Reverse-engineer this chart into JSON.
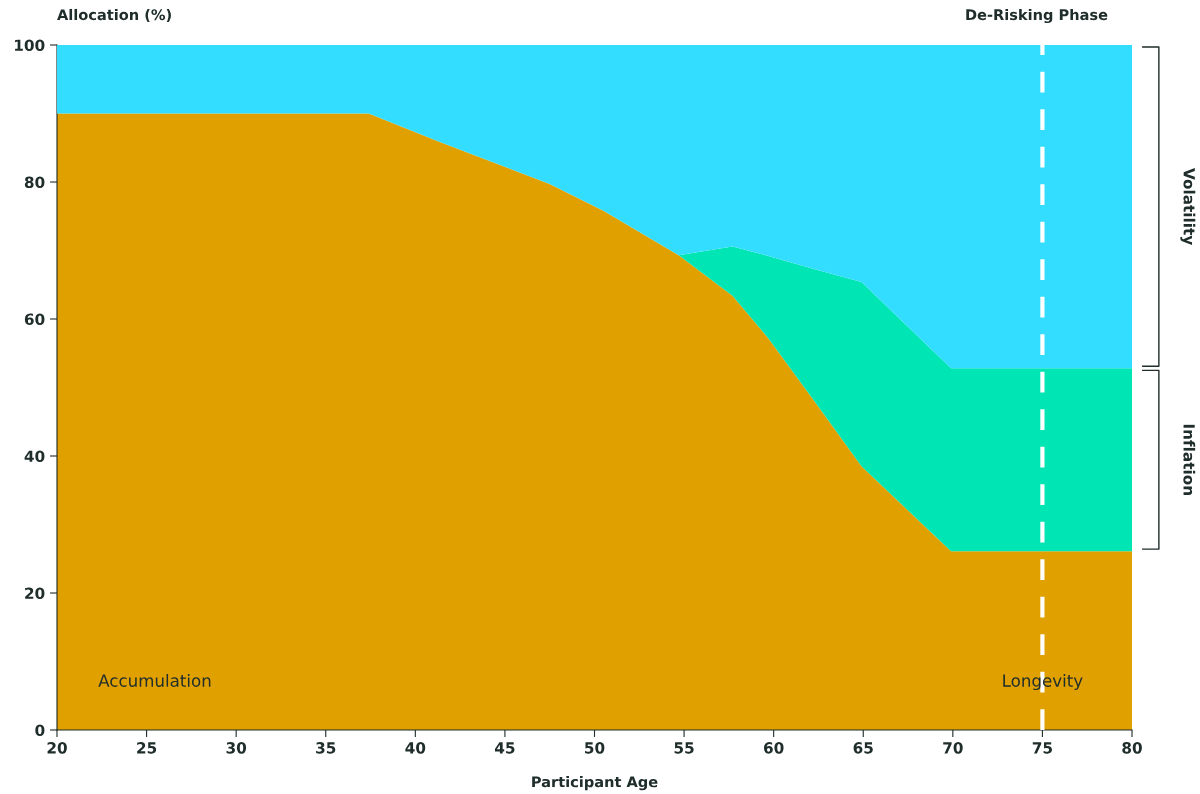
{
  "chart_data": {
    "type": "area",
    "stacked": true,
    "xlabel": "Participant Age",
    "ylabel": "Allocation (%)",
    "x": [
      20,
      37.4,
      41.3,
      47.5,
      50.5,
      54.7,
      57.7,
      59.7,
      62.5,
      64.9,
      69.9,
      80
    ],
    "series": [
      {
        "color": "#e0a000",
        "values": [
          90,
          90,
          85.9,
          79.7,
          75.8,
          69.3,
          63.4,
          57.2,
          47.2,
          38.5,
          26.1,
          26.1
        ]
      },
      {
        "name": "Inflation",
        "color": "#00e5b4",
        "values": [
          0,
          0,
          0,
          0,
          0,
          0,
          7.2,
          12.0,
          19.9,
          26.9,
          26.7,
          26.7
        ]
      },
      {
        "name": "Volatility",
        "color": "#33ddff",
        "values": [
          10,
          10,
          14.1,
          20.3,
          24.2,
          30.7,
          29.4,
          30.8,
          32.9,
          34.6,
          47.2,
          47.2
        ]
      }
    ],
    "xlim": [
      20,
      80
    ],
    "xticks": [
      20,
      25,
      30,
      35,
      40,
      45,
      50,
      55,
      60,
      65,
      70,
      75,
      80
    ],
    "ylim": [
      0,
      100
    ],
    "yticks": [
      0,
      20,
      40,
      60,
      80,
      100
    ],
    "grid": false,
    "ref_lines": [
      {
        "axis": "x",
        "value": 75,
        "label": "Longevity",
        "color": "#ffffff",
        "line_style": "dashed"
      }
    ],
    "annotations": [
      "De-Risking Phase",
      "Accumulation"
    ]
  }
}
